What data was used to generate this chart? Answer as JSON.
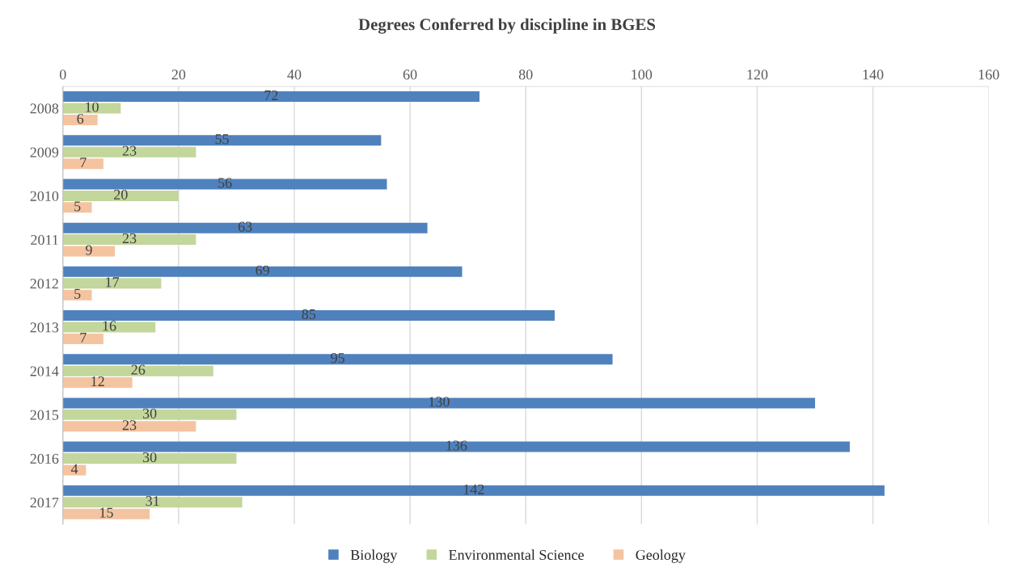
{
  "chart_data": {
    "type": "bar",
    "orientation": "horizontal",
    "title": "Degrees Conferred by discipline in BGES",
    "categories": [
      "2008",
      "2009",
      "2010",
      "2011",
      "2012",
      "2013",
      "2014",
      "2015",
      "2016",
      "2017"
    ],
    "series": [
      {
        "name": "Biology",
        "color": "#4f81bd",
        "values": [
          72,
          55,
          56,
          63,
          69,
          85,
          95,
          130,
          136,
          142
        ]
      },
      {
        "name": "Environmental Science",
        "color": "#c3d69b",
        "values": [
          10,
          23,
          20,
          23,
          17,
          16,
          26,
          30,
          30,
          31
        ]
      },
      {
        "name": "Geology",
        "color": "#f4c4a0",
        "values": [
          6,
          7,
          5,
          9,
          5,
          7,
          12,
          23,
          4,
          15
        ]
      }
    ],
    "xlim": [
      0,
      160
    ],
    "xticks": [
      0,
      20,
      40,
      60,
      80,
      100,
      120,
      140,
      160
    ],
    "grid": "x",
    "legend": "bottom",
    "data_labels": true
  }
}
